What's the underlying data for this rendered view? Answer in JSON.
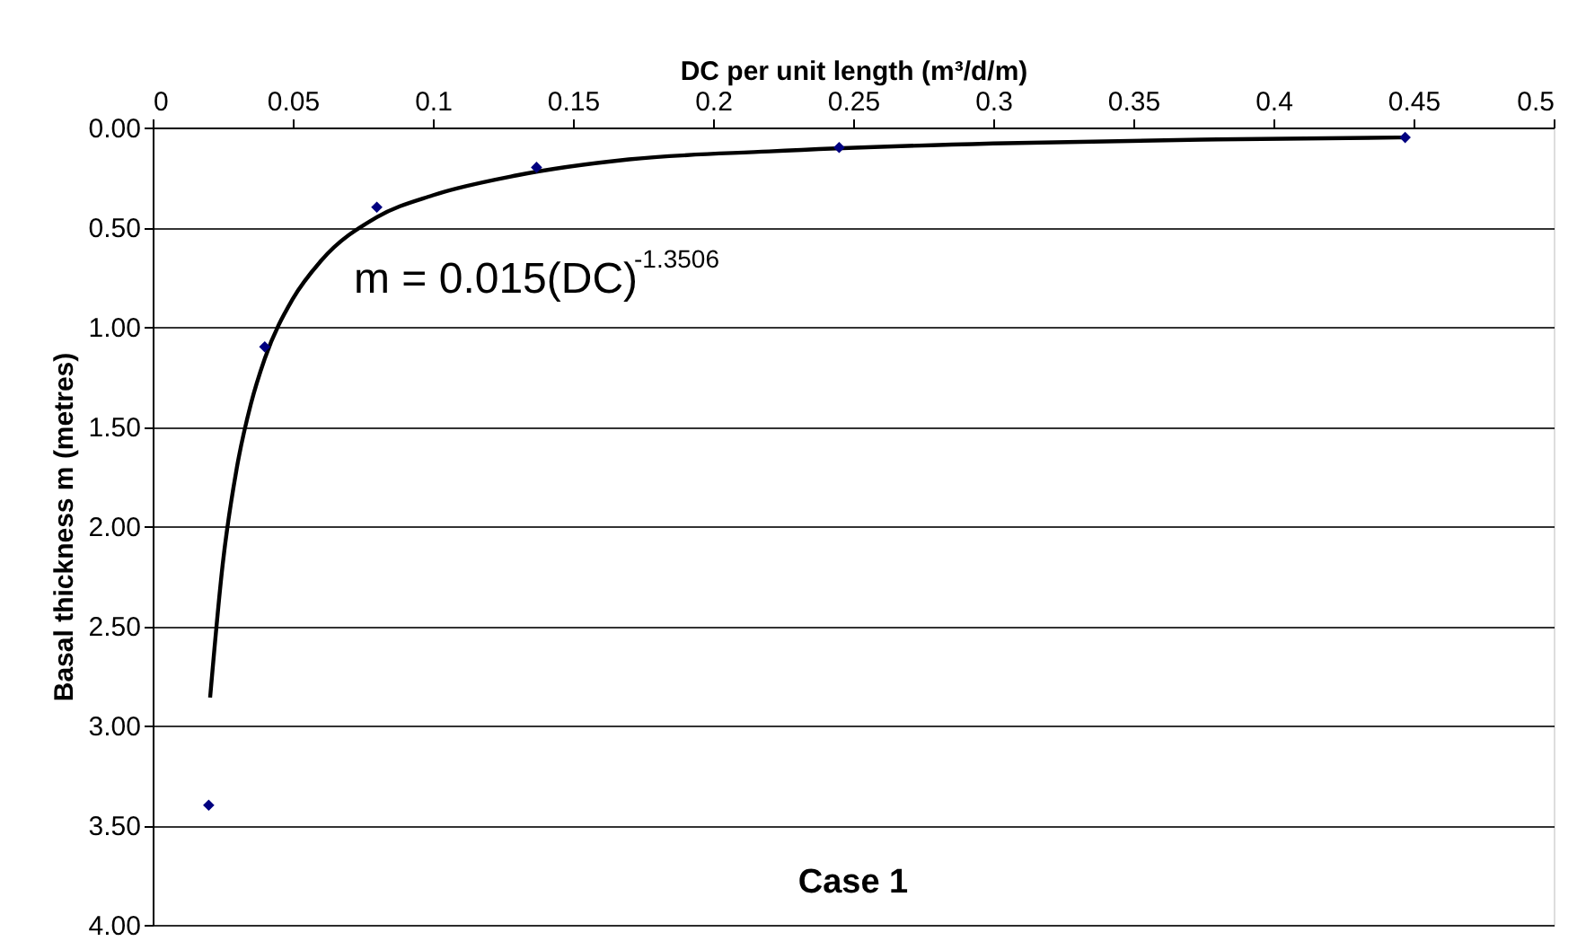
{
  "chart_data": {
    "type": "scatter",
    "xlabel": "DC per unit length (m³/d/m)",
    "ylabel": "Basal thickness m (metres)",
    "series": [
      {
        "color": "#000080",
        "marker": "diamond",
        "x": [
          0.02,
          0.04,
          0.08,
          0.137,
          0.245,
          0.447
        ],
        "values": [
          3.4,
          1.1,
          0.4,
          0.2,
          0.1,
          0.05
        ]
      },
      {
        "type": "line",
        "color": "#000000",
        "line_style": "solid",
        "marker": "none",
        "x": [
          0.0205,
          0.025,
          0.03,
          0.035,
          0.04,
          0.05,
          0.06,
          0.08,
          0.1,
          0.13,
          0.17,
          0.22,
          0.3,
          0.38,
          0.447
        ],
        "values": [
          2.86,
          2.19,
          1.71,
          1.39,
          1.16,
          0.86,
          0.67,
          0.45,
          0.34,
          0.24,
          0.16,
          0.12,
          0.08,
          0.06,
          0.05
        ]
      }
    ],
    "xlim": [
      0,
      0.5
    ],
    "xticks": [
      0,
      0.05,
      0.1,
      0.15,
      0.2,
      0.25,
      0.3,
      0.35,
      0.4,
      0.45,
      0.5
    ],
    "ylim": [
      4,
      0
    ],
    "yticks": [
      {
        "value": 0,
        "label": "0.00"
      },
      {
        "value": 0.5,
        "label": "0.50"
      },
      {
        "value": 1,
        "label": "1.00"
      },
      {
        "value": 1.5,
        "label": "1.50"
      },
      {
        "value": 2,
        "label": "2.00"
      },
      {
        "value": 2.5,
        "label": "2.50"
      },
      {
        "value": 3,
        "label": "3.00"
      },
      {
        "value": 3.5,
        "label": "3.50"
      },
      {
        "value": 4,
        "label": "4.00"
      }
    ],
    "grid": "y",
    "legend": false,
    "annotations": [
      "m = 0.015(DC)$^{-1.3506}$",
      "Case 1"
    ]
  }
}
